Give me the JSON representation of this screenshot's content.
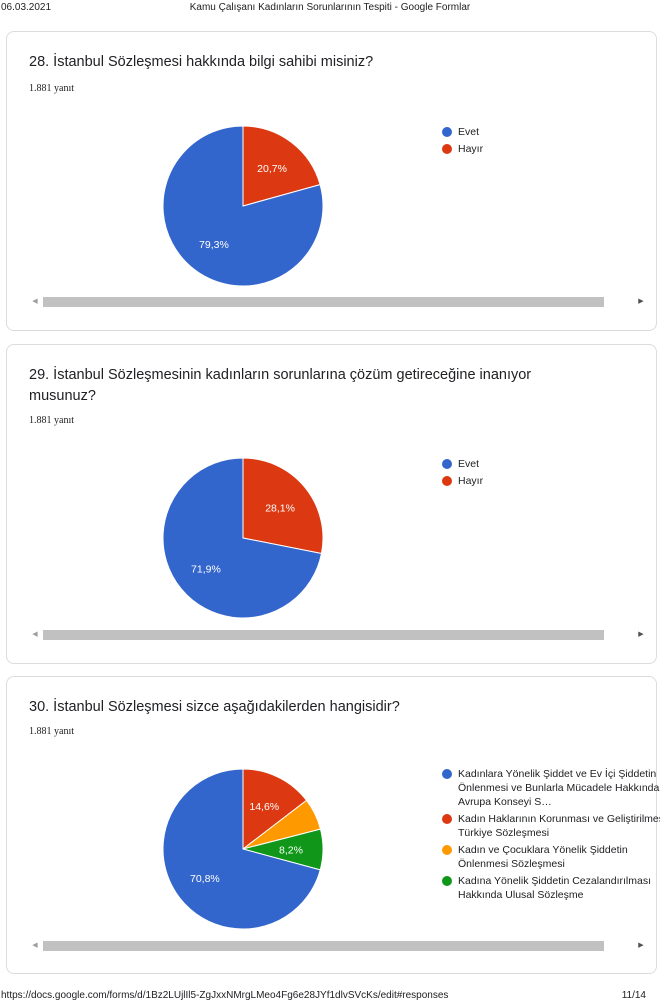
{
  "header": {
    "date": "06.03.2021",
    "title": "Kamu Çalışanı Kadınların Sorunlarının Tespiti - Google Formlar"
  },
  "footer": {
    "url": "https://docs.google.com/forms/d/1Bz2LUjlIl5-ZgJxxNMrgLMeo4Fg6e28JYf1dlvSVcKs/edit#responses",
    "page": "11/14"
  },
  "colors": {
    "blue": "#3366cc",
    "red": "#dc3912",
    "orange": "#ff9900",
    "green": "#109618"
  },
  "questions": [
    {
      "title": "28. İstanbul Sözleşmesi hakkında bilgi sahibi misiniz?",
      "count": "1.881 yanıt",
      "legend": [
        {
          "label": "Evet",
          "color": "#3366cc"
        },
        {
          "label": "Hayır",
          "color": "#dc3912"
        }
      ]
    },
    {
      "title": "29. İstanbul Sözleşmesinin kadınların sorunlarına çözüm getireceğine inanıyor musunuz?",
      "count": "1.881 yanıt",
      "legend": [
        {
          "label": "Evet",
          "color": "#3366cc"
        },
        {
          "label": "Hayır",
          "color": "#dc3912"
        }
      ]
    },
    {
      "title": "30. İstanbul Sözleşmesi sizce aşağıdakilerden hangisidir?",
      "count": "1.881 yanıt",
      "legend": [
        {
          "label": "Kadınlara Yönelik Şiddet ve Ev İçi Şiddetin Önlenmesi ve Bunlarla Mücadele Hakkında Avrupa Konseyi S…",
          "color": "#3366cc"
        },
        {
          "label": "Kadın Haklarının Korunması ve Geliştirilmesi Türkiye Sözleşmesi",
          "color": "#dc3912"
        },
        {
          "label": "Kadın ve Çocuklara Yönelik Şiddetin Önlenmesi Sözleşmesi",
          "color": "#ff9900"
        },
        {
          "label": "Kadına Yönelik Şiddetin Cezalandırılması Hakkında Ulusal Sözleşme",
          "color": "#109618"
        }
      ]
    }
  ],
  "chart_data": [
    {
      "type": "pie",
      "title": "28. İstanbul Sözleşmesi hakkında bilgi sahibi misiniz?",
      "categories": [
        "Evet",
        "Hayır"
      ],
      "values": [
        79.3,
        20.7
      ],
      "labels": [
        "79,3%",
        "20,7%"
      ],
      "colors": [
        "#3366cc",
        "#dc3912"
      ],
      "legend": "right"
    },
    {
      "type": "pie",
      "title": "29. İstanbul Sözleşmesinin kadınların sorunlarına çözüm getireceğine inanıyor musunuz?",
      "categories": [
        "Evet",
        "Hayır"
      ],
      "values": [
        71.9,
        28.1
      ],
      "labels": [
        "71,9%",
        "28,1%"
      ],
      "colors": [
        "#3366cc",
        "#dc3912"
      ],
      "legend": "right"
    },
    {
      "type": "pie",
      "title": "30. İstanbul Sözleşmesi sizce aşağıdakilerden hangisidir?",
      "categories": [
        "Kadınlara Yönelik Şiddet ve Ev İçi Şiddetin Önlenmesi ve Bunlarla Mücadele Hakkında Avrupa Konseyi S…",
        "Kadın Haklarının Korunması ve Geliştirilmesi Türkiye Sözleşmesi",
        "Kadın ve Çocuklara Yönelik Şiddetin Önlenmesi Sözleşmesi",
        "Kadına Yönelik Şiddetin Cezalandırılması Hakkında Ulusal Sözleşme"
      ],
      "values": [
        70.8,
        14.6,
        6.4,
        8.2
      ],
      "labels": [
        "70,8%",
        "14,6%",
        "",
        "8,2%"
      ],
      "colors": [
        "#3366cc",
        "#dc3912",
        "#ff9900",
        "#109618"
      ],
      "legend": "right"
    }
  ]
}
